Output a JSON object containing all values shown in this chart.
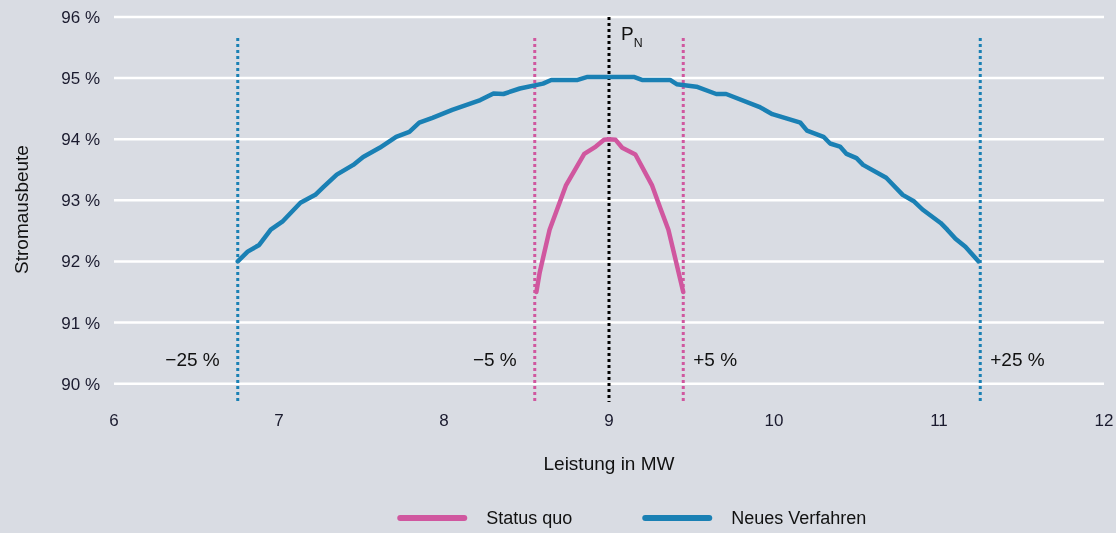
{
  "chart_data": {
    "type": "line",
    "xlabel": "Leistung in MW",
    "ylabel": "Stromausbeute",
    "xlim": [
      6,
      12
    ],
    "xticks": [
      6,
      7,
      8,
      9,
      10,
      11,
      12
    ],
    "ylim": [
      89.7,
      96
    ],
    "yticks": [
      {
        "value": 90,
        "label": "90 %"
      },
      {
        "value": 91,
        "label": "91 %"
      },
      {
        "value": 92,
        "label": "92 %"
      },
      {
        "value": 93,
        "label": "93 %"
      },
      {
        "value": 94,
        "label": "94 %"
      },
      {
        "value": 95,
        "label": "95 %"
      },
      {
        "value": 96,
        "label": "96 %"
      }
    ],
    "grid": "y",
    "legend": "bottom",
    "line_style": "solid",
    "marker": "none",
    "series": [
      {
        "name": "Status quo",
        "color": "#d0579f",
        "x": [
          8.56,
          8.58,
          8.64,
          8.74,
          8.85,
          8.92,
          8.97,
          9.0,
          9.04,
          9.08,
          9.16,
          9.26,
          9.31,
          9.36,
          9.45
        ],
        "values": [
          91.5,
          91.82,
          92.52,
          93.25,
          93.76,
          93.88,
          93.99,
          94.0,
          93.99,
          93.86,
          93.75,
          93.25,
          92.88,
          92.52,
          91.5
        ]
      },
      {
        "name": "Neues Verfahren",
        "color": "#1a80b4",
        "x": [
          6.75,
          6.81,
          6.88,
          6.95,
          7.02,
          7.13,
          7.22,
          7.27,
          7.35,
          7.45,
          7.51,
          7.61,
          7.71,
          7.79,
          7.85,
          7.93,
          8.05,
          8.22,
          8.3,
          8.36,
          8.46,
          8.6,
          8.65,
          8.81,
          8.87,
          9.15,
          9.2,
          9.37,
          9.41,
          9.53,
          9.65,
          9.71,
          9.91,
          9.99,
          10.16,
          10.2,
          10.3,
          10.34,
          10.4,
          10.44,
          10.5,
          10.54,
          10.68,
          10.78,
          10.85,
          10.9,
          11.01,
          11.05,
          11.1,
          11.16,
          11.24
        ],
        "values": [
          92.0,
          92.16,
          92.27,
          92.52,
          92.65,
          92.96,
          93.09,
          93.22,
          93.42,
          93.58,
          93.71,
          93.86,
          94.04,
          94.12,
          94.27,
          94.35,
          94.48,
          94.64,
          94.75,
          94.74,
          94.83,
          94.91,
          94.97,
          94.97,
          95.02,
          95.02,
          94.97,
          94.97,
          94.9,
          94.86,
          94.74,
          94.74,
          94.53,
          94.41,
          94.27,
          94.14,
          94.04,
          93.93,
          93.88,
          93.76,
          93.69,
          93.58,
          93.37,
          93.09,
          92.98,
          92.85,
          92.63,
          92.52,
          92.37,
          92.24,
          92.0
        ]
      }
    ],
    "ref_lines": [
      {
        "axis": "x",
        "value": 6.75,
        "color": "#1a80b4",
        "line_style": "dotted"
      },
      {
        "axis": "x",
        "value": 8.55,
        "color": "#d0579f",
        "line_style": "dotted"
      },
      {
        "axis": "x",
        "value": 9,
        "label": "P$_{N}$",
        "color": "#000000",
        "line_style": "dotted"
      },
      {
        "axis": "x",
        "value": 9.45,
        "color": "#d0579f",
        "line_style": "dotted"
      },
      {
        "axis": "x",
        "value": 11.25,
        "color": "#1a80b4",
        "line_style": "dotted"
      }
    ],
    "annotations": [
      "−25 %",
      "−5 %",
      "+5 %",
      "+25 %"
    ]
  }
}
